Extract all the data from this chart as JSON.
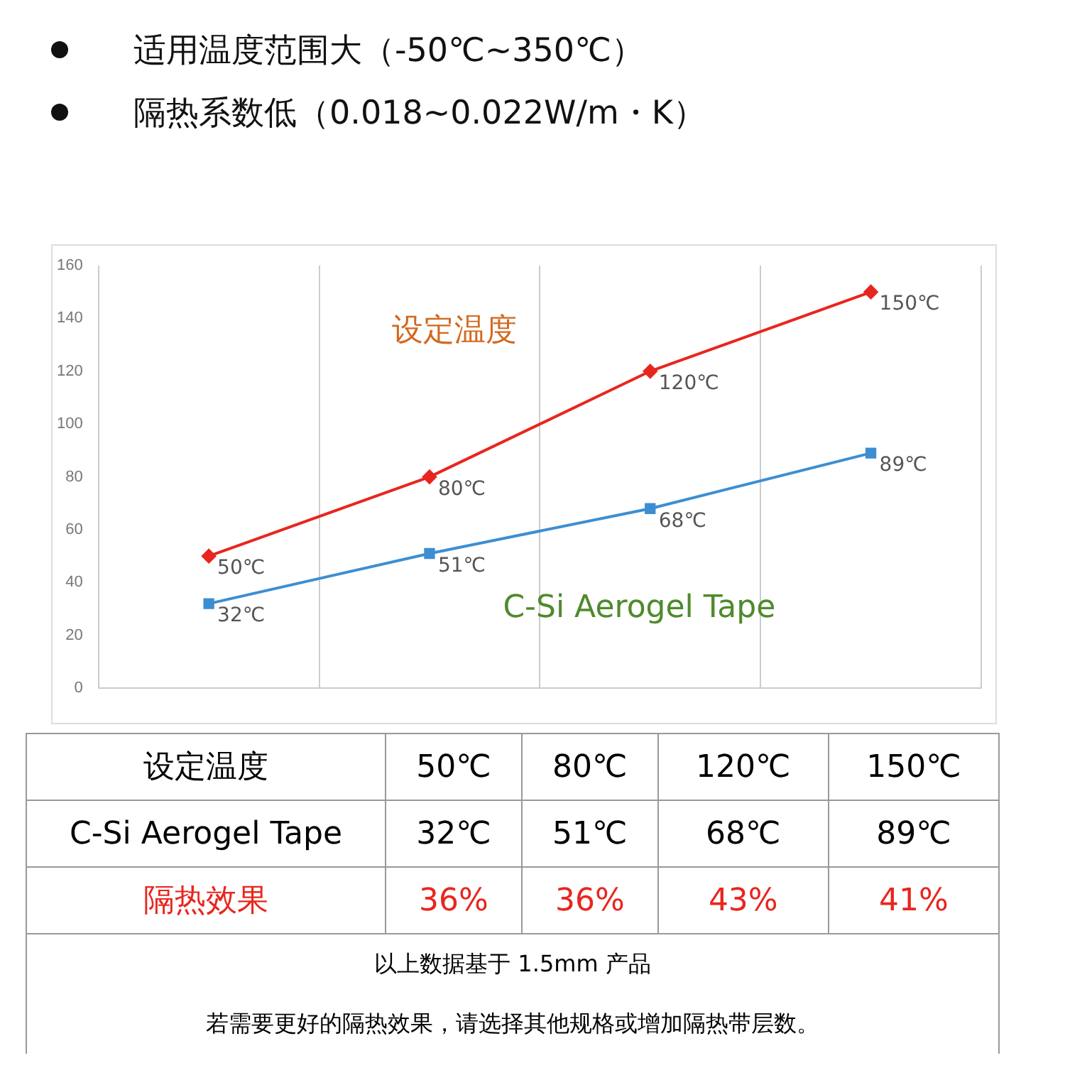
{
  "chart_data": {
    "type": "line",
    "title": "适用温度范围大（-50℃~350℃）",
    "subtitle": "隔热系数低（0.018~0.022W/m・K）",
    "categories": [
      null,
      null,
      null,
      null
    ],
    "series": [
      {
        "name": "设定温度",
        "color": "#e8261e",
        "marker": "diamond",
        "values": [
          50,
          80,
          120,
          150
        ],
        "value_labels": [
          "50℃",
          "80℃",
          "120℃",
          "150℃"
        ]
      },
      {
        "name": "C-Si Aerogel Tape",
        "color": "#3d8ed1",
        "marker": "square",
        "values": [
          32,
          51,
          68,
          89
        ],
        "value_labels": [
          "32℃",
          "51℃",
          "68℃",
          "89℃"
        ]
      }
    ],
    "ylim": [
      0,
      160
    ],
    "yticks": [
      0,
      20,
      40,
      60,
      80,
      100,
      120,
      140,
      160
    ],
    "grid": "x",
    "legend": false,
    "annotations": [
      "隔热效果",
      "36%",
      "36%",
      "43%",
      "41%",
      "以上数据基于 1.5mm 产品",
      "若需要更好的隔热效果，请选择其他规格或增加隔热带层数。"
    ]
  }
}
